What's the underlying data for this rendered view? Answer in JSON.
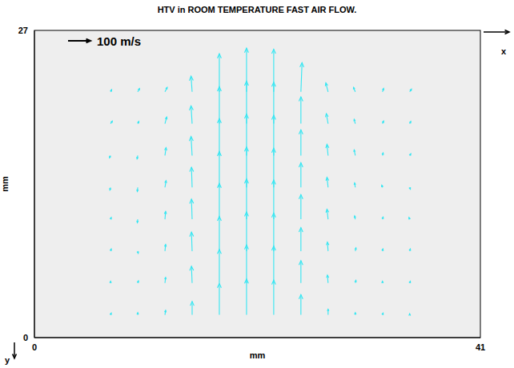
{
  "chart_data": {
    "type": "quiver",
    "title": "HTV in ROOM TEMPERATURE FAST AIR FLOW.",
    "x_label": "mm",
    "y_label": "mm",
    "x_direction_label": "x",
    "y_direction_label": "y",
    "xlim": [
      0,
      41
    ],
    "xticks": [
      0,
      41
    ],
    "ylim": [
      0,
      27
    ],
    "yticks": [
      0,
      27
    ],
    "grid": false,
    "color": "#33e6f2",
    "key": {
      "value": 100,
      "label": "100 m/s"
    },
    "x": [
      7,
      9.5,
      12,
      14.5,
      17,
      19.5,
      22,
      24.5,
      27,
      29.5,
      32,
      34.5,
      7,
      9.5,
      12,
      14.5,
      17,
      19.5,
      22,
      24.5,
      27,
      29.5,
      32,
      34.5,
      7,
      9.5,
      12,
      14.5,
      17,
      19.5,
      22,
      24.5,
      27,
      29.5,
      32,
      34.5,
      7,
      9.5,
      12,
      14.5,
      17,
      19.5,
      22,
      24.5,
      27,
      29.5,
      32,
      34.5,
      7,
      9.5,
      12,
      14.5,
      17,
      19.5,
      22,
      24.5,
      27,
      29.5,
      32,
      34.5,
      7,
      9.5,
      12,
      14.5,
      17,
      19.5,
      22,
      24.5,
      27,
      29.5,
      32,
      34.5,
      7,
      9.5,
      12,
      14.5,
      17,
      19.5,
      22,
      24.5,
      27,
      29.5,
      32,
      34.5,
      7,
      9.5,
      12,
      14.5,
      17,
      19.5,
      22,
      24.5,
      27,
      29.5,
      32,
      34.5
    ],
    "y": [
      21.6,
      21.6,
      21.6,
      21.6,
      21.6,
      21.6,
      21.6,
      21.6,
      21.6,
      21.6,
      21.6,
      21.6,
      18.8,
      18.8,
      18.8,
      18.8,
      18.8,
      18.8,
      18.8,
      18.8,
      18.8,
      18.8,
      18.8,
      18.8,
      16,
      16,
      16,
      16,
      16,
      16,
      16,
      16,
      16,
      16,
      16,
      16,
      13.2,
      13.2,
      13.2,
      13.2,
      13.2,
      13.2,
      13.2,
      13.2,
      13.2,
      13.2,
      13.2,
      13.2,
      10.4,
      10.4,
      10.4,
      10.4,
      10.4,
      10.4,
      10.4,
      10.4,
      10.4,
      10.4,
      10.4,
      10.4,
      7.6,
      7.6,
      7.6,
      7.6,
      7.6,
      7.6,
      7.6,
      7.6,
      7.6,
      7.6,
      7.6,
      7.6,
      4.8,
      4.8,
      4.8,
      4.8,
      4.8,
      4.8,
      4.8,
      4.8,
      4.8,
      4.8,
      4.8,
      4.8,
      2,
      2,
      2,
      2,
      2,
      2,
      2,
      2,
      2,
      2,
      2,
      2
    ],
    "u": [
      5,
      8,
      10,
      -5,
      0,
      0,
      0,
      5,
      -10,
      -8,
      5,
      8,
      8,
      5,
      8,
      -5,
      0,
      0,
      0,
      0,
      -8,
      -5,
      5,
      5,
      -5,
      -3,
      5,
      -5,
      0,
      0,
      0,
      0,
      -5,
      -5,
      3,
      5,
      -3,
      -2,
      5,
      -3,
      0,
      0,
      0,
      0,
      -5,
      -3,
      -3,
      3,
      3,
      -2,
      3,
      -3,
      0,
      0,
      0,
      0,
      -5,
      -3,
      3,
      -3,
      3,
      2,
      3,
      -3,
      0,
      0,
      0,
      0,
      -3,
      3,
      2,
      3,
      0,
      3,
      3,
      -3,
      0,
      0,
      0,
      0,
      -3,
      3,
      0,
      3,
      3,
      0,
      3,
      0,
      0,
      0,
      0,
      0,
      0,
      0,
      3,
      0
    ],
    "v": [
      10,
      15,
      20,
      70,
      170,
      195,
      190,
      130,
      40,
      20,
      15,
      12,
      12,
      10,
      30,
      80,
      165,
      190,
      185,
      120,
      45,
      20,
      12,
      10,
      -10,
      -15,
      35,
      85,
      165,
      185,
      180,
      115,
      50,
      25,
      12,
      8,
      -12,
      -18,
      30,
      90,
      160,
      180,
      175,
      110,
      45,
      20,
      10,
      -8,
      8,
      -15,
      35,
      90,
      160,
      180,
      175,
      110,
      45,
      15,
      10,
      8,
      10,
      -10,
      30,
      85,
      155,
      175,
      170,
      105,
      40,
      15,
      10,
      10,
      8,
      10,
      25,
      75,
      150,
      170,
      165,
      100,
      35,
      12,
      8,
      8,
      8,
      10,
      20,
      60,
      140,
      160,
      155,
      90,
      25,
      10,
      8,
      5
    ]
  }
}
